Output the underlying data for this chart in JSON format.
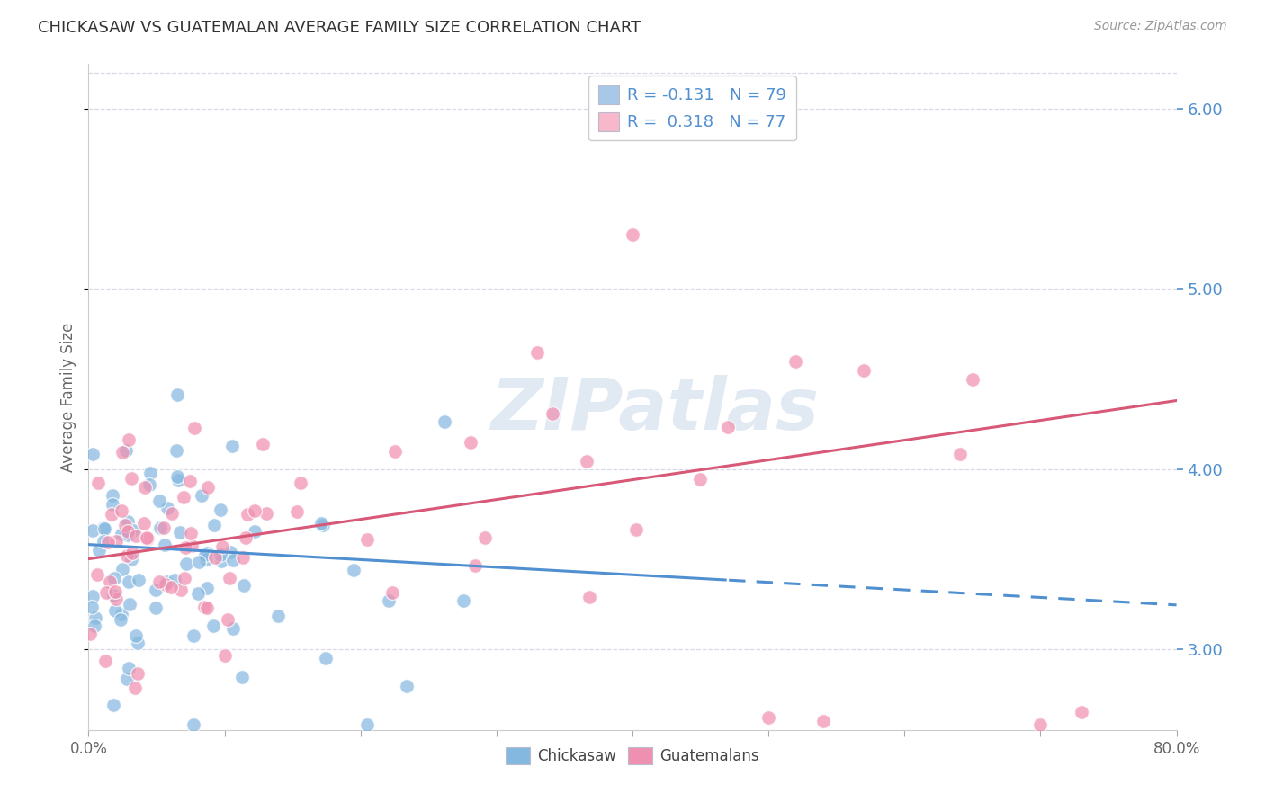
{
  "title": "CHICKASAW VS GUATEMALAN AVERAGE FAMILY SIZE CORRELATION CHART",
  "source": "Source: ZipAtlas.com",
  "ylabel": "Average Family Size",
  "watermark": "ZIPatlas",
  "legend_entries": [
    {
      "label": "R = -0.131   N = 79",
      "color": "#a8c8e8"
    },
    {
      "label": "R =  0.318   N = 77",
      "color": "#f8b8cc"
    }
  ],
  "legend_labels_bottom": [
    "Chickasaw",
    "Guatemalans"
  ],
  "chickasaw_color": "#85b8e0",
  "guatemalan_color": "#f090b0",
  "chickasaw_line_color": "#5090d0",
  "guatemalan_line_color": "#d85878",
  "yticks_right": [
    3.0,
    4.0,
    5.0,
    6.0
  ],
  "xlim": [
    0.0,
    0.8
  ],
  "ylim": [
    2.55,
    6.25
  ],
  "background_color": "#ffffff",
  "grid_color": "#d8d8e8",
  "title_color": "#333333",
  "axis_label_color": "#666666",
  "right_tick_color": "#5090d0",
  "chickasaw_intercept": 3.58,
  "chickasaw_slope": -0.42,
  "guatemalan_intercept": 3.5,
  "guatemalan_slope": 1.1,
  "chick_solid_end": 0.47,
  "xtick_count": 9
}
